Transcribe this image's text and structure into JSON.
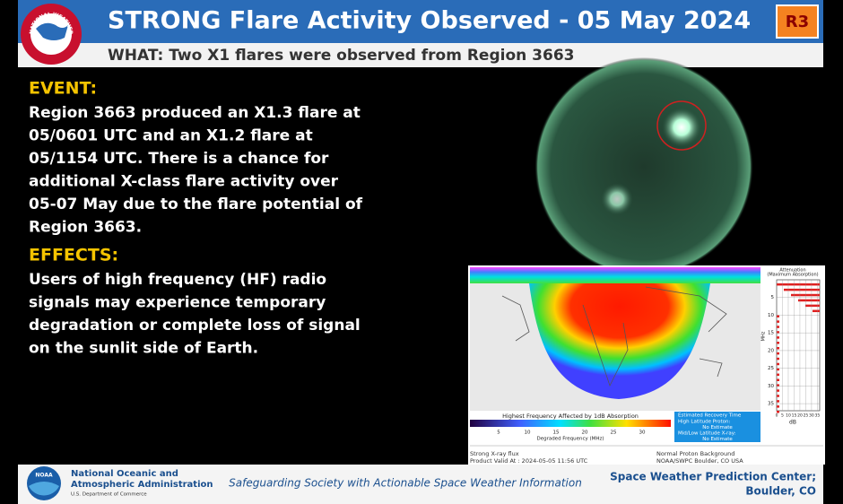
{
  "header": {
    "logo_text": "NATIONAL WEATHER SERVICE",
    "title": "STRONG Flare Activity Observed - 05 May 2024",
    "scale": "R3",
    "subtitle": "WHAT: Two X1 flares were observed from Region 3663"
  },
  "event": {
    "heading": "EVENT:",
    "lines": [
      "Region 3663 produced an X1.3 flare at",
      "05/0601 UTC and an X1.2 flare at",
      "05/1154 UTC. There is a chance for",
      "additional X-class flare activity over",
      "05-07 May due to the flare potential of",
      "Region 3663."
    ]
  },
  "effects": {
    "heading": "EFFECTS:",
    "lines": [
      "Users of high frequency (HF) radio",
      "signals may experience temporary",
      "degradation or complete loss of signal",
      "on the sunlit side of Earth."
    ]
  },
  "drap": {
    "colorbar_title": "Highest Frequency Affected by 1dB Absorption",
    "colorbar_ticks": [
      5,
      10,
      15,
      20,
      25,
      30
    ],
    "colorbar_label": "Degraded Frequency (MHz)",
    "recovery_title": "Estimated Recovery Time",
    "recovery_lines": [
      "High Latitude Proton:",
      "No Estimate",
      "Mid/Low Latitude X-ray:",
      "No Estimate"
    ],
    "footer_left": [
      "Strong X-ray flux",
      "Product Valid At : 2024-05-05 11:56 UTC"
    ],
    "footer_right": [
      "Normal Proton Background",
      "NOAA/SWPC Boulder, CO USA"
    ],
    "atten_title": [
      "Attenuation",
      "(Maximum Absorption)"
    ],
    "atten_yticks": [
      5,
      10,
      15,
      20,
      25,
      30,
      35
    ],
    "atten_ylabel": "MHz",
    "atten_xticks": [
      0,
      5,
      10,
      15,
      20,
      25,
      30,
      35
    ],
    "atten_xlabel": "dB"
  },
  "footer": {
    "logo_text": "NOAA",
    "org_lines": [
      "National Oceanic and",
      "Atmospheric Administration"
    ],
    "dept": "U.S. Department of Commerce",
    "tagline": "Safeguarding Society with Actionable Space Weather Information",
    "center_lines": [
      "Space Weather Prediction Center;",
      "Boulder, CO"
    ]
  }
}
